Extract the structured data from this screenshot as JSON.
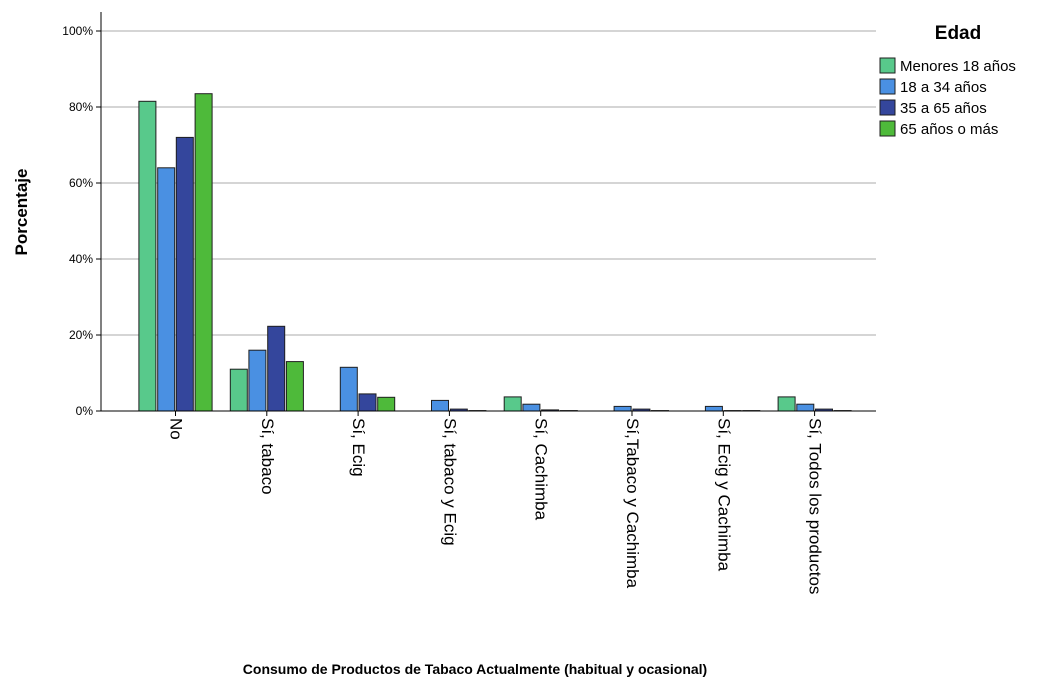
{
  "chart_data": {
    "type": "bar",
    "title": "",
    "xlabel": "Consumo de Productos de Tabaco Actualmente (habitual y ocasional)",
    "ylabel": "Porcentaje",
    "ylim": [
      0,
      100
    ],
    "yticks": [
      "0%",
      "20%",
      "40%",
      "60%",
      "80%",
      "100%"
    ],
    "grid": "horizontal",
    "legend_title": "Edad",
    "legend_position": "top-right",
    "categories": [
      "No",
      "Sí, tabaco",
      "Sí, Ecig",
      "Sí, tabaco y Ecig",
      "Sí, Cachimba",
      "Sí,Tabaco y Cachimba",
      "Sí, Ecig y Cachimba",
      "Sí, Todos los productos"
    ],
    "series": [
      {
        "name": "Menores 18 años",
        "color": "#58c98b",
        "values": [
          81.5,
          11.0,
          0.0,
          0.0,
          3.7,
          0.0,
          0.0,
          3.7
        ]
      },
      {
        "name": "18 a 34 años",
        "color": "#4a90e2",
        "values": [
          64.0,
          16.0,
          11.5,
          2.8,
          1.8,
          1.2,
          1.2,
          1.8
        ]
      },
      {
        "name": "35 a 65 años",
        "color": "#34469c",
        "values": [
          72.0,
          22.3,
          4.5,
          0.5,
          0.3,
          0.5,
          0.1,
          0.5
        ]
      },
      {
        "name": "65 años o más",
        "color": "#4eba3a",
        "values": [
          83.5,
          13.0,
          3.6,
          0.1,
          0.1,
          0.1,
          0.1,
          0.1
        ]
      }
    ]
  }
}
